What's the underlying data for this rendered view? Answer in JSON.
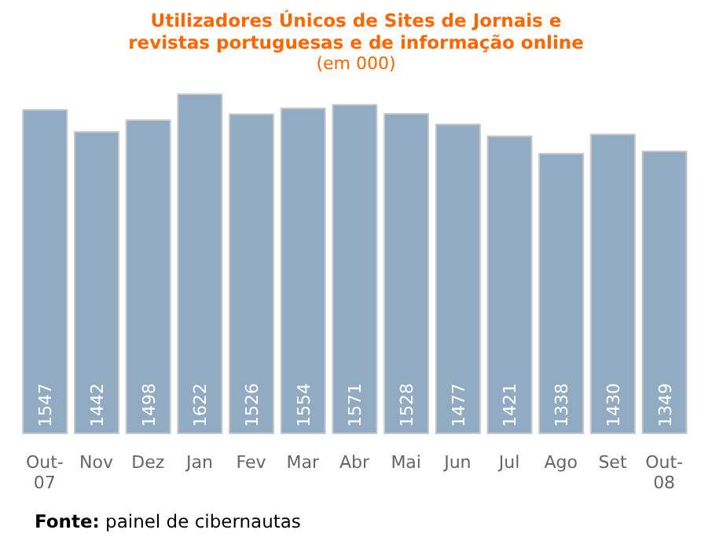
{
  "chart_data": {
    "type": "bar",
    "title": "Utilizadores Únicos de Sites de Jornais e revistas portuguesas e de informação online",
    "subtitle": "(em 000)",
    "categories": [
      "Out-07",
      "Nov",
      "Dez",
      "Jan",
      "Fev",
      "Mar",
      "Abr",
      "Mai",
      "Jun",
      "Jul",
      "Ago",
      "Set",
      "Out-08"
    ],
    "values": [
      1547,
      1442,
      1498,
      1622,
      1526,
      1554,
      1571,
      1528,
      1477,
      1421,
      1338,
      1430,
      1349
    ],
    "color": "#91abc3",
    "data_labels": true,
    "annotations": [
      "Fonte: painel de cibernautas"
    ]
  }
}
